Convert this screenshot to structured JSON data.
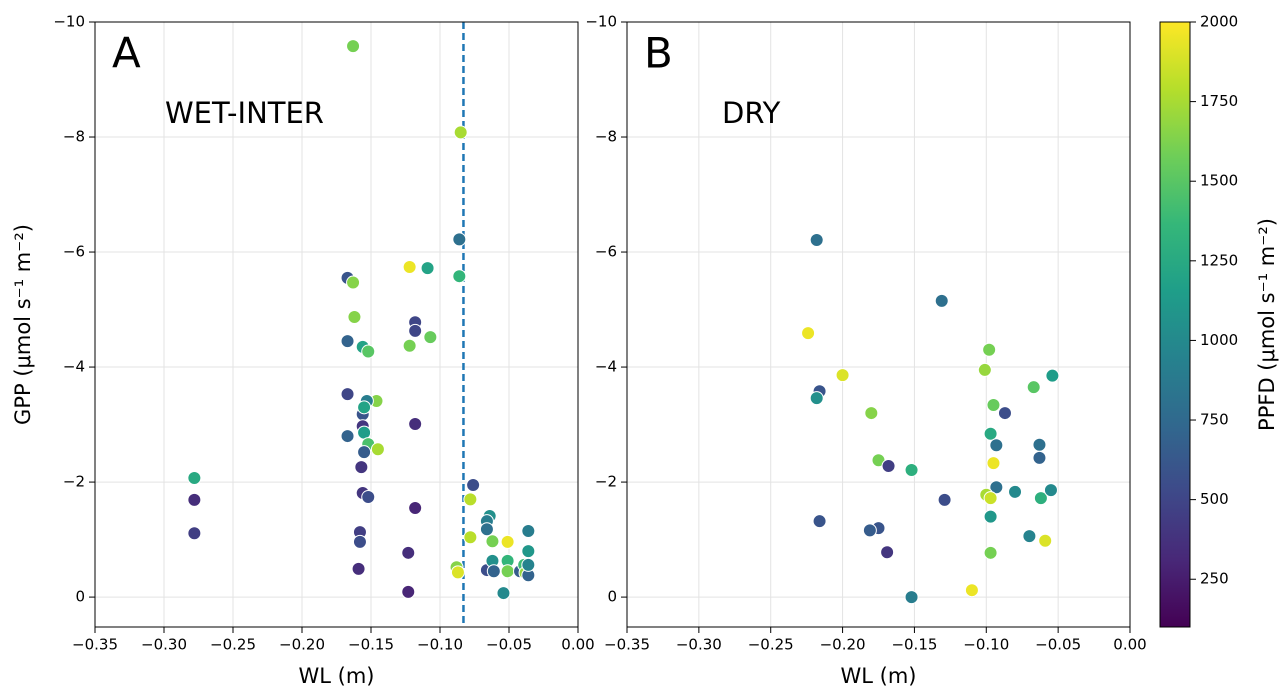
{
  "chart_data": [
    {
      "type": "scatter",
      "panel": "A",
      "annotation": "WET-INTER",
      "xlabel": "WL (m)",
      "ylabel": "GPP (μmol s⁻¹ m⁻²)",
      "grid": true,
      "xlim": [
        -0.35,
        0
      ],
      "ylim": [
        0.52,
        -10
      ],
      "xticks": [
        {
          "value": -0.35,
          "label": "−0.35"
        },
        {
          "value": -0.3,
          "label": "−0.30"
        },
        {
          "value": -0.25,
          "label": "−0.25"
        },
        {
          "value": -0.2,
          "label": "−0.20"
        },
        {
          "value": -0.15,
          "label": "−0.15"
        },
        {
          "value": -0.1,
          "label": "−0.10"
        },
        {
          "value": -0.05,
          "label": "−0.05"
        },
        {
          "value": 0,
          "label": "0.00"
        }
      ],
      "yticks": [
        0,
        {
          "value": -2,
          "label": "−2"
        },
        {
          "value": -4,
          "label": "−4"
        },
        {
          "value": -6,
          "label": "−6"
        },
        {
          "value": -8,
          "label": "−8"
        },
        {
          "value": -10,
          "label": "−10"
        }
      ],
      "vline": {
        "x": -0.083,
        "color": "#1f77b4",
        "style": "dashed"
      },
      "x": [
        -0.163,
        -0.085,
        -0.086,
        -0.086,
        -0.109,
        -0.122,
        -0.167,
        -0.163,
        -0.162,
        -0.167,
        -0.156,
        -0.152,
        -0.118,
        -0.118,
        -0.107,
        -0.122,
        -0.167,
        -0.146,
        -0.153,
        -0.156,
        -0.155,
        -0.156,
        -0.167,
        -0.155,
        -0.152,
        -0.145,
        -0.155,
        -0.118,
        -0.157,
        -0.278,
        -0.278,
        -0.278,
        -0.156,
        -0.152,
        -0.158,
        -0.158,
        -0.159,
        -0.118,
        -0.123,
        -0.123,
        -0.076,
        -0.078,
        -0.078,
        -0.064,
        -0.066,
        -0.066,
        -0.062,
        -0.051,
        -0.036,
        -0.036,
        -0.088,
        -0.087,
        -0.066,
        -0.062,
        -0.061,
        -0.051,
        -0.051,
        -0.042,
        -0.039,
        -0.038,
        -0.036,
        -0.036,
        -0.054
      ],
      "values": [
        -9.58,
        -8.08,
        -6.22,
        -5.58,
        -5.72,
        -5.74,
        -5.55,
        -5.47,
        -4.87,
        -4.45,
        -4.35,
        -4.27,
        -4.78,
        -4.63,
        -4.52,
        -4.37,
        -3.53,
        -3.41,
        -3.41,
        -3.18,
        -3.3,
        -2.97,
        -2.8,
        -2.86,
        -2.66,
        -2.57,
        -2.52,
        -3.01,
        -2.26,
        -2.07,
        -1.69,
        -1.11,
        -1.81,
        -1.74,
        -1.13,
        -0.96,
        -0.49,
        -1.55,
        -0.77,
        -0.09,
        -1.95,
        -1.7,
        -1.04,
        -1.41,
        -1.32,
        -1.18,
        -0.97,
        -0.96,
        -1.15,
        -0.8,
        -0.52,
        -0.43,
        -0.47,
        -0.63,
        -0.45,
        -0.63,
        -0.45,
        -0.45,
        -0.56,
        -0.42,
        -0.38,
        -0.56,
        -0.07
      ],
      "c": [
        1600,
        1750,
        800,
        1350,
        1200,
        1950,
        600,
        1650,
        1650,
        700,
        1200,
        1500,
        500,
        500,
        1550,
        1600,
        500,
        1650,
        900,
        600,
        1200,
        400,
        700,
        1150,
        1450,
        1750,
        650,
        350,
        400,
        1250,
        350,
        450,
        400,
        550,
        450,
        550,
        350,
        300,
        350,
        300,
        550,
        1800,
        1800,
        1050,
        900,
        800,
        1600,
        1950,
        900,
        1100,
        1650,
        1900,
        550,
        1050,
        700,
        1350,
        1600,
        650,
        1400,
        1700,
        700,
        950,
        1000
      ]
    },
    {
      "type": "scatter",
      "panel": "B",
      "annotation": "DRY",
      "xlabel": "WL (m)",
      "grid": true,
      "xlim": [
        -0.35,
        0
      ],
      "ylim": [
        0.52,
        -10
      ],
      "xticks": [
        {
          "value": -0.35,
          "label": "−0.35"
        },
        {
          "value": -0.3,
          "label": "−0.30"
        },
        {
          "value": -0.25,
          "label": "−0.25"
        },
        {
          "value": -0.2,
          "label": "−0.20"
        },
        {
          "value": -0.15,
          "label": "−0.15"
        },
        {
          "value": -0.1,
          "label": "−0.10"
        },
        {
          "value": -0.05,
          "label": "−0.05"
        },
        {
          "value": 0,
          "label": "0.00"
        }
      ],
      "yticks": [
        0,
        {
          "value": -2,
          "label": "−2"
        },
        {
          "value": -4,
          "label": "−4"
        },
        {
          "value": -6,
          "label": "−6"
        },
        {
          "value": -8,
          "label": "−8"
        },
        {
          "value": -10,
          "label": "−10"
        }
      ],
      "x": [
        -0.218,
        -0.131,
        -0.224,
        -0.2,
        -0.216,
        -0.218,
        -0.18,
        -0.175,
        -0.168,
        -0.152,
        -0.129,
        -0.216,
        -0.175,
        -0.181,
        -0.169,
        -0.152,
        -0.11,
        -0.098,
        -0.101,
        -0.095,
        -0.097,
        -0.093,
        -0.087,
        -0.067,
        -0.054,
        -0.063,
        -0.063,
        -0.095,
        -0.093,
        -0.1,
        -0.097,
        -0.08,
        -0.062,
        -0.055,
        -0.097,
        -0.07,
        -0.059,
        -0.097
      ],
      "values": [
        -6.21,
        -5.15,
        -4.59,
        -3.86,
        -3.58,
        -3.46,
        -3.2,
        -2.38,
        -2.28,
        -2.21,
        -1.69,
        -1.32,
        -1.2,
        -1.16,
        -0.78,
        0,
        -0.12,
        -4.3,
        -3.95,
        -3.34,
        -2.84,
        -2.64,
        -3.2,
        -3.65,
        -3.85,
        -2.65,
        -2.42,
        -2.33,
        -1.91,
        -1.78,
        -1.72,
        -1.83,
        -1.72,
        -1.86,
        -1.4,
        -1.06,
        -0.98,
        -0.77
      ],
      "c": [
        800,
        800,
        1950,
        1900,
        600,
        1050,
        1650,
        1600,
        450,
        1300,
        550,
        600,
        600,
        650,
        400,
        900,
        1950,
        1600,
        1700,
        1550,
        1250,
        800,
        550,
        1500,
        1150,
        800,
        700,
        1950,
        800,
        1750,
        1850,
        1000,
        1300,
        1000,
        1100,
        950,
        1900,
        1600
      ]
    }
  ],
  "colorbar": {
    "label": "PPFD (μmol s⁻¹ m⁻²)",
    "colormap": "viridis",
    "lim": [
      100,
      2000
    ],
    "ticks": [
      250,
      500,
      750,
      1000,
      1250,
      1500,
      1750,
      2000
    ]
  }
}
